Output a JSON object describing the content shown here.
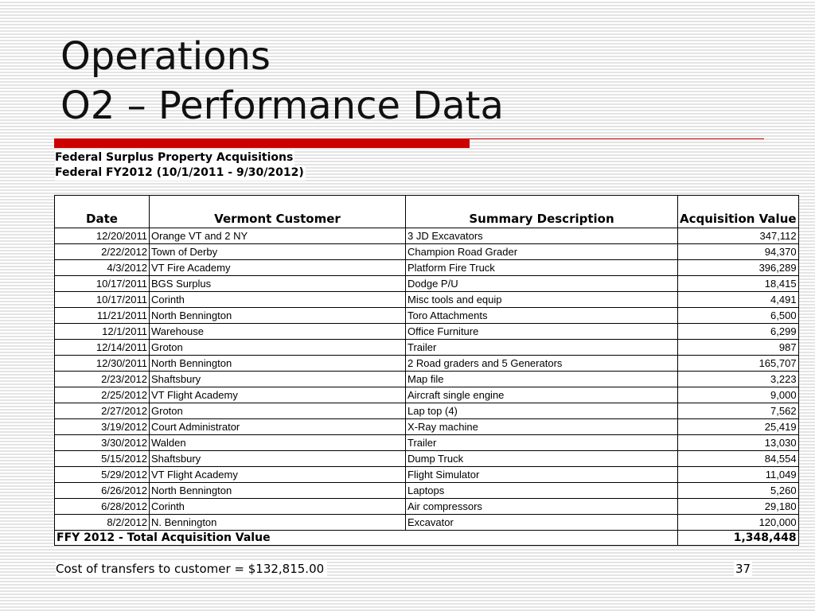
{
  "slide": {
    "title_line1": "Operations",
    "title_line2": "O2 – Performance Data",
    "accent_color": "#cc0000"
  },
  "report": {
    "heading": "Federal Surplus Property Acquisitions",
    "period": "Federal FY2012 (10/1/2011 - 9/30/2012)"
  },
  "table": {
    "columns": {
      "date": "Date",
      "customer": "Vermont Customer",
      "description": "Summary Description",
      "value": "Acquisition Value"
    },
    "rows": [
      {
        "date": "12/20/2011",
        "customer": " Orange VT and 2 NY",
        "description": "3 JD Excavators",
        "value": "347,112"
      },
      {
        "date": "2/22/2012",
        "customer": "Town of Derby",
        "description": "Champion Road Grader",
        "value": "94,370"
      },
      {
        "date": "4/3/2012",
        "customer": "VT Fire Academy",
        "description": "Platform Fire Truck",
        "value": "396,289"
      },
      {
        "date": "10/17/2011",
        "customer": "BGS Surplus",
        "description": "Dodge P/U",
        "value": "18,415"
      },
      {
        "date": "10/17/2011",
        "customer": "Corinth",
        "description": "Misc tools and equip",
        "value": "4,491"
      },
      {
        "date": "11/21/2011",
        "customer": "North Bennington",
        "description": "Toro Attachments",
        "value": "6,500"
      },
      {
        "date": "12/1/2011",
        "customer": "Warehouse",
        "description": "Office Furniture",
        "value": "6,299"
      },
      {
        "date": "12/14/2011",
        "customer": "Groton",
        "description": "Trailer",
        "value": "987"
      },
      {
        "date": "12/30/2011",
        "customer": "North Bennington",
        "description": "2 Road graders and 5 Generators",
        "value": "165,707"
      },
      {
        "date": "2/23/2012",
        "customer": "Shaftsbury",
        "description": "Map file",
        "value": "3,223"
      },
      {
        "date": "2/25/2012",
        "customer": "VT Flight Academy",
        "description": "Aircraft single engine",
        "value": "9,000"
      },
      {
        "date": "2/27/2012",
        "customer": "Groton",
        "description": "Lap top (4)",
        "value": "7,562"
      },
      {
        "date": "3/19/2012",
        "customer": "Court Administrator",
        "description": "X-Ray machine",
        "value": "25,419"
      },
      {
        "date": "3/30/2012",
        "customer": "Walden",
        "description": "Trailer",
        "value": "13,030"
      },
      {
        "date": "5/15/2012",
        "customer": "Shaftsbury",
        "description": "Dump Truck",
        "value": "84,554"
      },
      {
        "date": "5/29/2012",
        "customer": "VT Flight Academy",
        "description": "Flight Simulator",
        "value": "11,049"
      },
      {
        "date": "6/26/2012",
        "customer": "North Bennington",
        "description": "Laptops",
        "value": "5,260"
      },
      {
        "date": "6/28/2012",
        "customer": "Corinth",
        "description": "Air compressors",
        "value": "29,180"
      },
      {
        "date": "8/2/2012",
        "customer": "N. Bennington",
        "description": "Excavator",
        "value": "120,000"
      }
    ],
    "total": {
      "label": "FFY 2012 - Total Acquisition Value",
      "value": "1,348,448"
    }
  },
  "footer": {
    "note": "Cost of transfers to customer = $132,815.00",
    "page_number": "37"
  }
}
